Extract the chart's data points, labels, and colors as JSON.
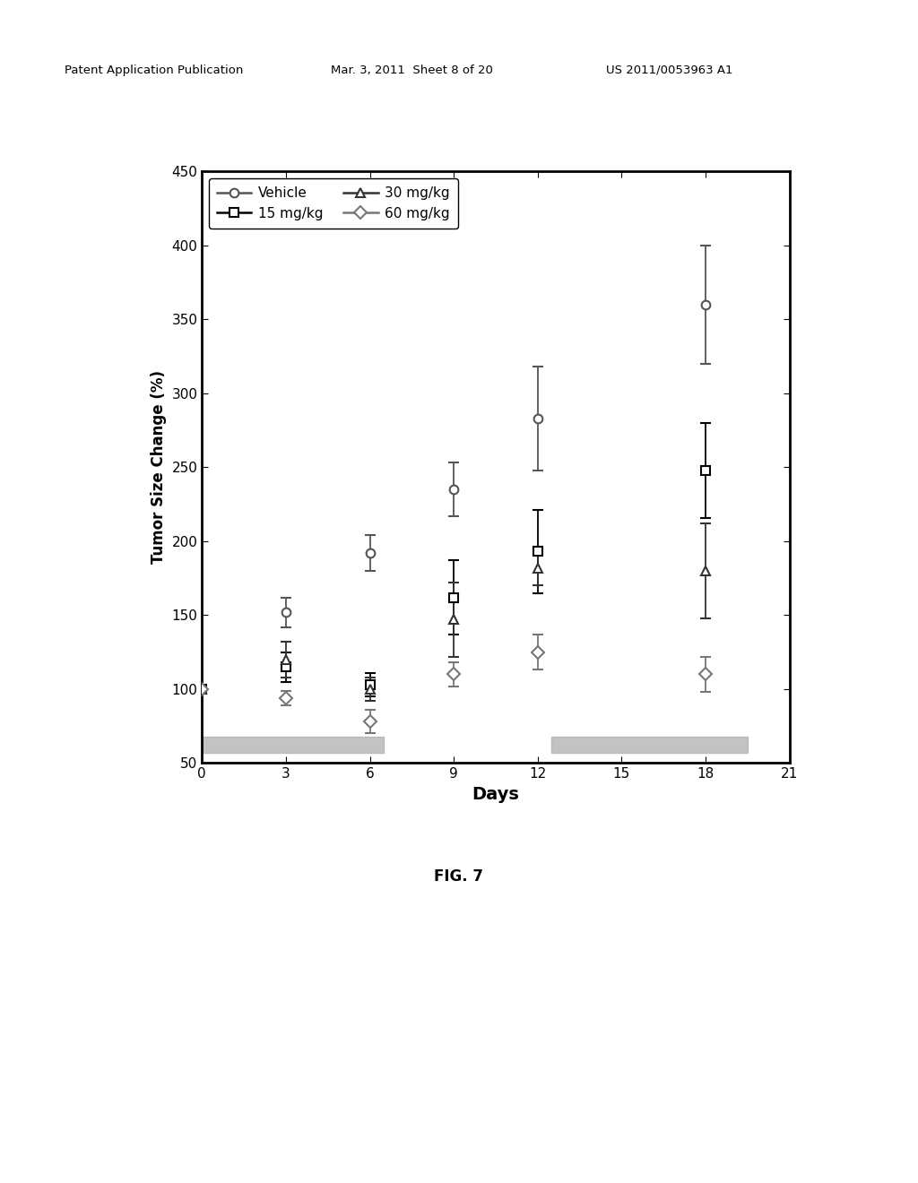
{
  "title": "FIG. 7",
  "xlabel": "Days",
  "ylabel": "Tumor Size Change (%)",
  "header_left": "Patent Application Publication",
  "header_mid": "Mar. 3, 2011  Sheet 8 of 20",
  "header_right": "US 2011/0053963 A1",
  "xlim": [
    0,
    21
  ],
  "ylim": [
    50,
    450
  ],
  "xticks": [
    0,
    3,
    6,
    9,
    12,
    15,
    18,
    21
  ],
  "yticks": [
    50,
    100,
    150,
    200,
    250,
    300,
    350,
    400,
    450
  ],
  "series_order": [
    "Vehicle",
    "15mg",
    "30mg",
    "60mg"
  ],
  "series": {
    "Vehicle": {
      "x": [
        0,
        3,
        6,
        9,
        12,
        18
      ],
      "y": [
        100,
        152,
        192,
        235,
        283,
        360
      ],
      "yerr": [
        0,
        10,
        12,
        18,
        35,
        40
      ],
      "marker": "o",
      "color": "#555555",
      "label": "Vehicle"
    },
    "15mg": {
      "x": [
        0,
        3,
        6,
        9,
        12,
        18
      ],
      "y": [
        100,
        115,
        103,
        162,
        193,
        248
      ],
      "yerr": [
        0,
        10,
        8,
        25,
        28,
        32
      ],
      "marker": "s",
      "color": "#000000",
      "label": "15 mg/kg"
    },
    "30mg": {
      "x": [
        0,
        3,
        6,
        9,
        12,
        18
      ],
      "y": [
        100,
        120,
        100,
        147,
        182,
        180
      ],
      "yerr": [
        0,
        12,
        8,
        25,
        12,
        32
      ],
      "marker": "^",
      "color": "#333333",
      "label": "30 mg/kg"
    },
    "60mg": {
      "x": [
        0,
        3,
        6,
        9,
        12,
        18
      ],
      "y": [
        100,
        94,
        78,
        110,
        125,
        110
      ],
      "yerr": [
        0,
        5,
        8,
        8,
        12,
        12
      ],
      "marker": "D",
      "color": "#777777",
      "label": "60 mg/kg"
    }
  },
  "gray_bar1_xmin": 0.0,
  "gray_bar1_xmax": 6.5,
  "gray_bar2_xmin": 12.5,
  "gray_bar2_xmax": 19.5,
  "gray_bar_ymin": 57,
  "gray_bar_ymax": 68,
  "background_color": "#ffffff",
  "figsize": [
    10.24,
    13.2
  ],
  "dpi": 100
}
